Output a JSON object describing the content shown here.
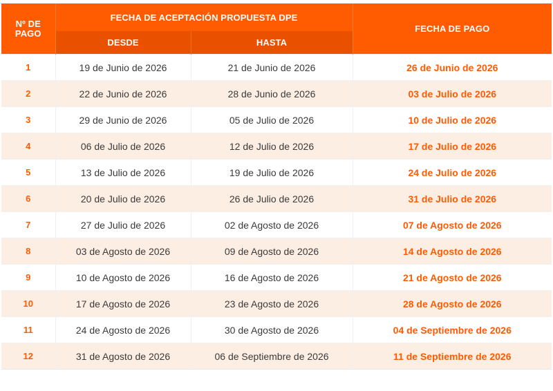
{
  "header": {
    "num_label_line1": "Nº DE",
    "num_label_line2": "PAGO",
    "group_label": "FECHA DE ACEPTACIÓN PROPUESTA DPE",
    "desde_label": "DESDE",
    "hasta_label": "HASTA",
    "pago_label": "FECHA DE PAGO"
  },
  "colors": {
    "header_orange": "#ff5b00",
    "subheader_orange": "#e95100",
    "accent_text": "#ff5b00",
    "stripe": "#fdeee3"
  },
  "rows": [
    {
      "num": "1",
      "desde": "19 de Junio de 2026",
      "hasta": "21 de Junio de 2026",
      "pago": "26 de Junio de 2026"
    },
    {
      "num": "2",
      "desde": "22 de Junio de 2026",
      "hasta": "28 de Junio de 2026",
      "pago": "03 de Julio de 2026"
    },
    {
      "num": "3",
      "desde": "29 de Junio de 2026",
      "hasta": "05 de Julio de 2026",
      "pago": "10 de Julio de 2026"
    },
    {
      "num": "4",
      "desde": "06 de Julio de 2026",
      "hasta": "12 de Julio de 2026",
      "pago": "17 de Julio de 2026"
    },
    {
      "num": "5",
      "desde": "13 de Julio de 2026",
      "hasta": "19 de Julio de 2026",
      "pago": "24 de Julio de 2026"
    },
    {
      "num": "6",
      "desde": "20 de Julio de 2026",
      "hasta": "26 de Julio de 2026",
      "pago": "31 de Julio de 2026"
    },
    {
      "num": "7",
      "desde": "27 de Julio de 2026",
      "hasta": "02 de Agosto de 2026",
      "pago": "07 de Agosto de 2026"
    },
    {
      "num": "8",
      "desde": "03 de Agosto de 2026",
      "hasta": "09 de Agosto de 2026",
      "pago": "14 de Agosto de 2026"
    },
    {
      "num": "9",
      "desde": "10 de Agosto de 2026",
      "hasta": "16 de Agosto de 2026",
      "pago": "21 de Agosto de 2026"
    },
    {
      "num": "10",
      "desde": "17 de Agosto de 2026",
      "hasta": "23 de Agosto de 2026",
      "pago": "28 de Agosto de 2026"
    },
    {
      "num": "11",
      "desde": "24 de Agosto de 2026",
      "hasta": "30 de Agosto de 2026",
      "pago": "04 de Septiembre de 2026"
    },
    {
      "num": "12",
      "desde": "31 de Agosto de 2026",
      "hasta": "06 de Septiembre de 2026",
      "pago": "11 de Septiembre de 2026"
    }
  ]
}
